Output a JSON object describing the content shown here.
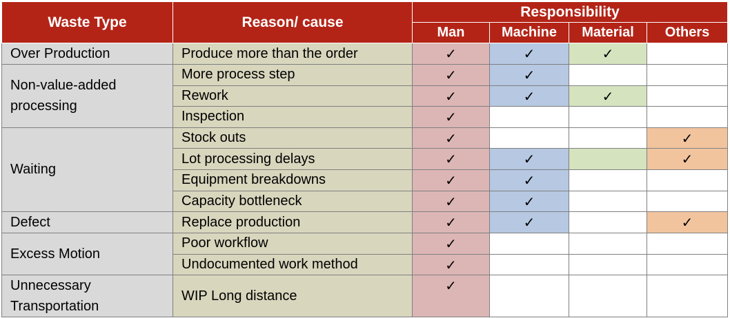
{
  "header": {
    "waste_type": "Waste Type",
    "reason": "Reason/ cause",
    "responsibility": "Responsibility",
    "columns": [
      "Man",
      "Machine",
      "Material",
      "Others"
    ]
  },
  "check_mark": "✓",
  "colors": {
    "header": "#b32417",
    "waste_cell": "#d9d9d9",
    "reason_cell": "#d8d6bd",
    "man": "#dcb6b5",
    "machine": "#b6c8e2",
    "material": "#d5e4bf",
    "others": "#f2c49e"
  },
  "groups": [
    {
      "waste": "Over Production",
      "rows": [
        {
          "reason": "Produce more than the order",
          "man": true,
          "machine": true,
          "material": true,
          "others": false
        }
      ]
    },
    {
      "waste": "Non-value-added processing",
      "rows": [
        {
          "reason": "More process step",
          "man": true,
          "machine": true,
          "material": false,
          "others": false
        },
        {
          "reason": "Rework",
          "man": true,
          "machine": true,
          "material": true,
          "others": false
        },
        {
          "reason": "Inspection",
          "man": true,
          "machine": false,
          "material": false,
          "others": false
        }
      ]
    },
    {
      "waste": "Waiting",
      "rows": [
        {
          "reason": "Stock outs",
          "man": true,
          "machine": false,
          "material": false,
          "others": true
        },
        {
          "reason": "Lot processing delays",
          "man": true,
          "machine": true,
          "material": false,
          "material_shaded": true,
          "others": true
        },
        {
          "reason": "Equipment breakdowns",
          "man": true,
          "machine": true,
          "material": false,
          "others": false
        },
        {
          "reason": "Capacity bottleneck",
          "man": true,
          "machine": true,
          "material": false,
          "others": false
        }
      ]
    },
    {
      "waste": "Defect",
      "rows": [
        {
          "reason": "Replace production",
          "man": true,
          "machine": true,
          "material": false,
          "others": true
        }
      ]
    },
    {
      "waste": "Excess Motion",
      "rows": [
        {
          "reason": "Poor workflow",
          "man": true,
          "machine": false,
          "material": false,
          "others": false
        },
        {
          "reason": "Undocumented work method",
          "man": true,
          "machine": false,
          "material": false,
          "others": false
        }
      ]
    },
    {
      "waste": "Unnecessary Transportation",
      "rows": [
        {
          "reason": "WIP Long distance",
          "man": true,
          "machine": false,
          "material": false,
          "others": false,
          "tall": true
        }
      ]
    }
  ]
}
